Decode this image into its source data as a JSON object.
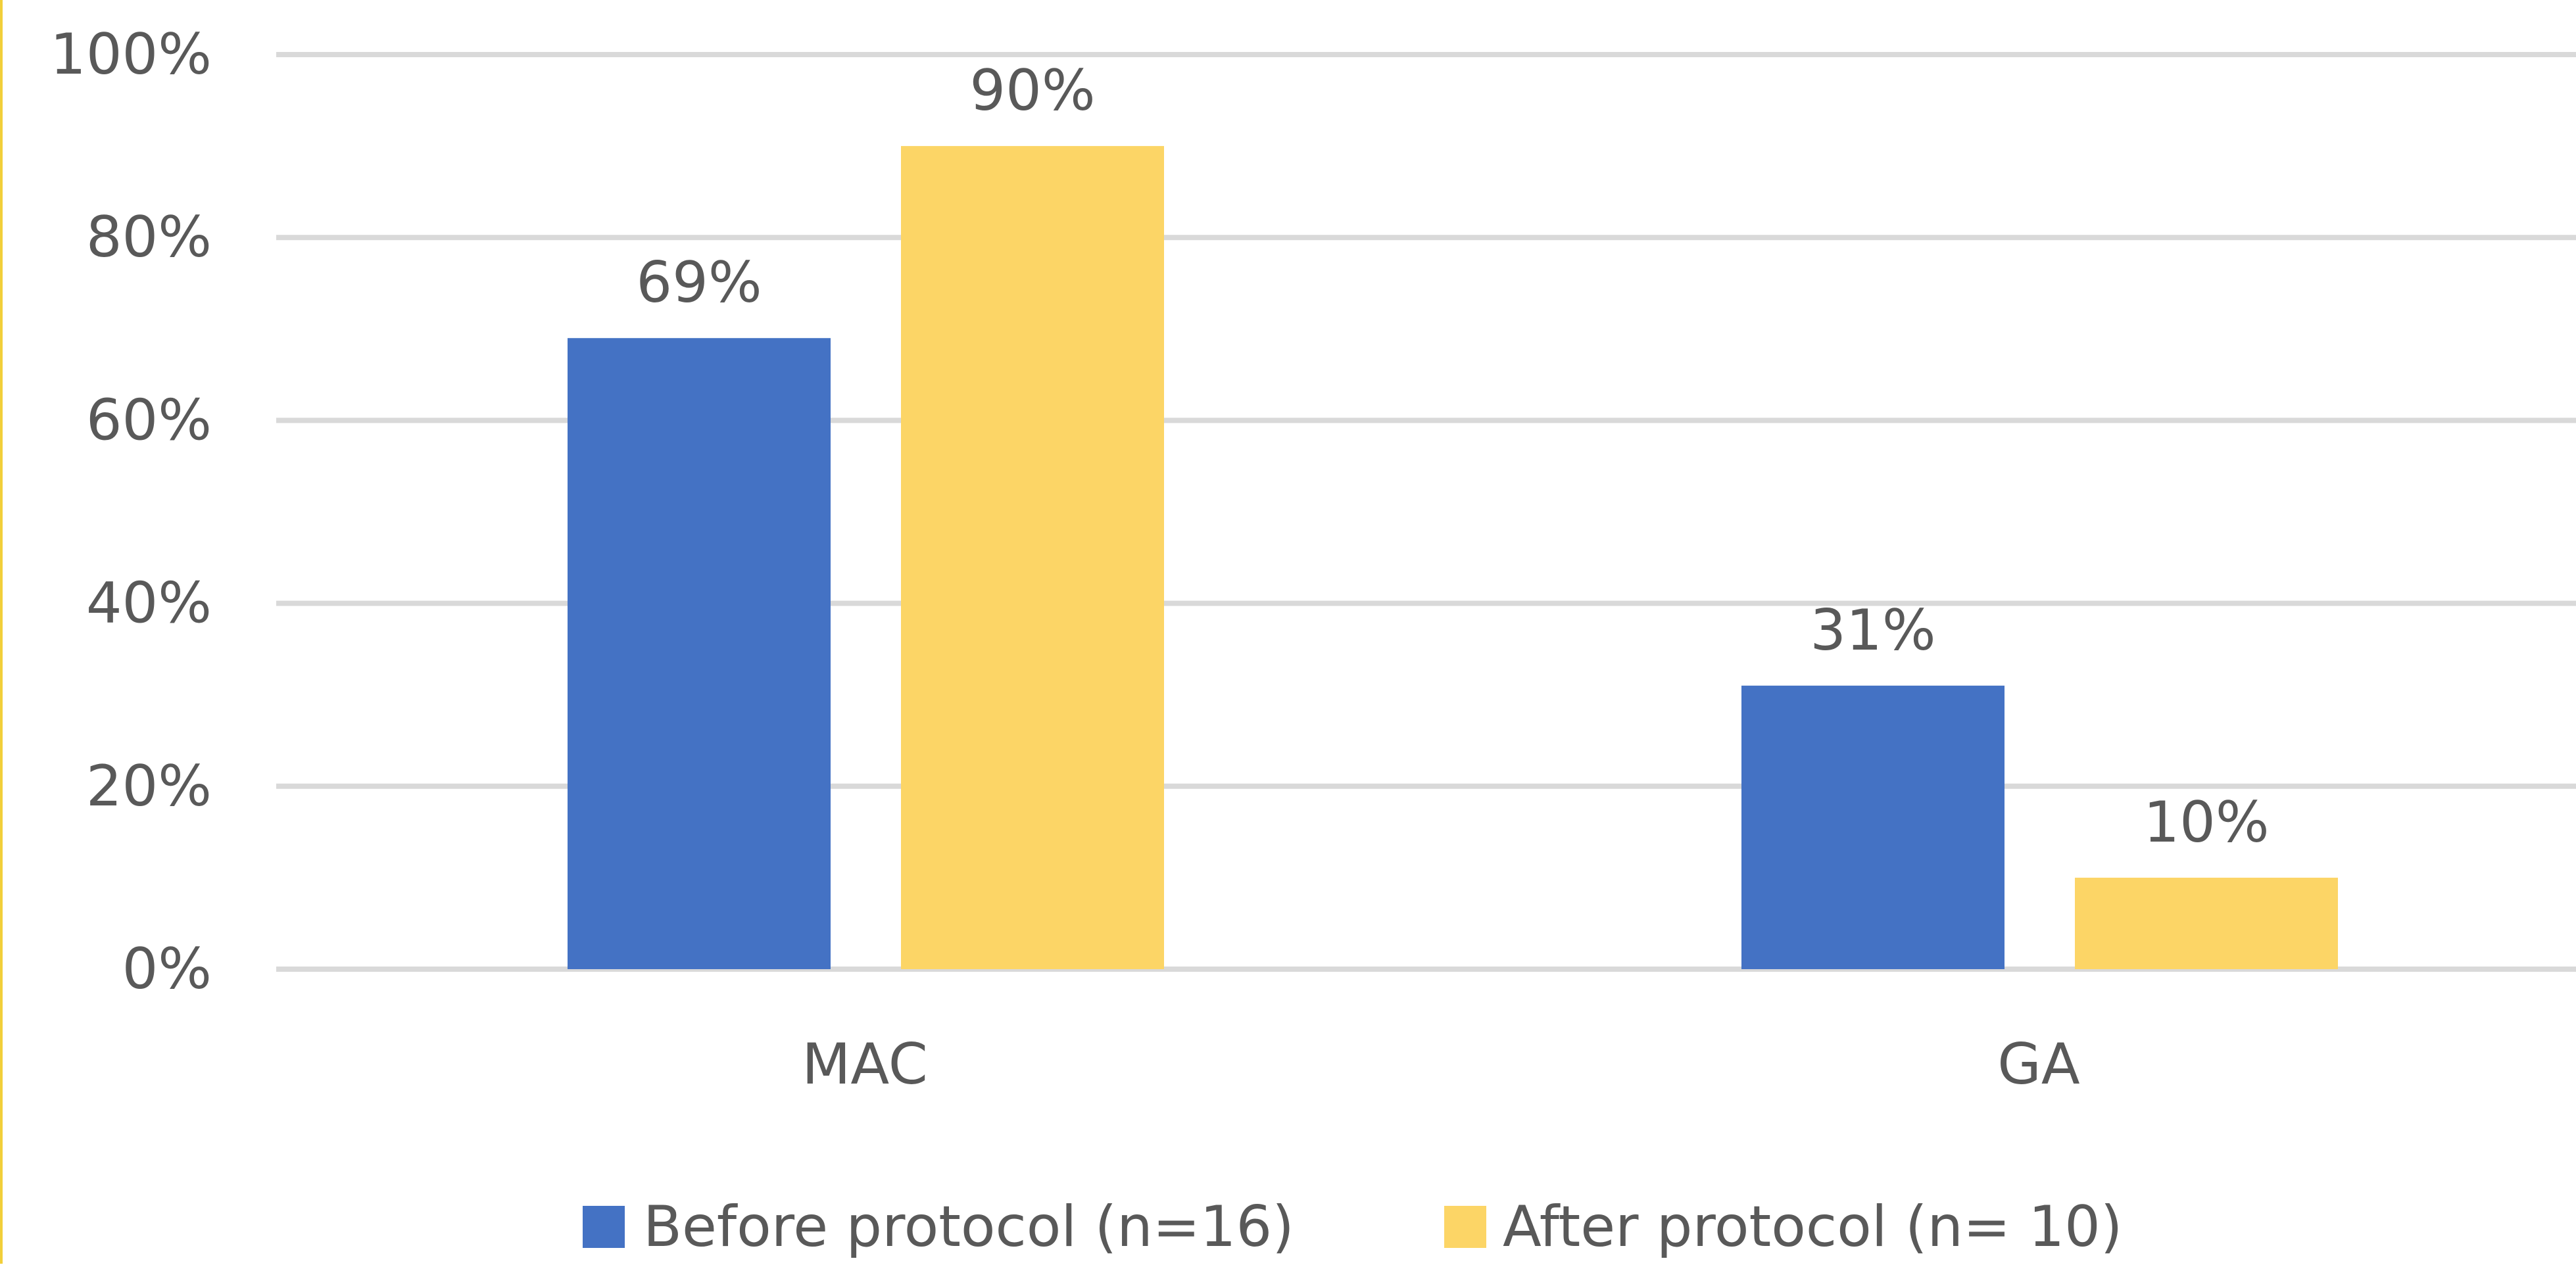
{
  "chart_data": {
    "type": "bar",
    "title": "",
    "xlabel": "",
    "ylabel": "",
    "categories": [
      "MAC",
      "GA"
    ],
    "series": [
      {
        "name": "Before protocol (n=16)",
        "values": [
          69,
          31
        ],
        "labels": [
          "69%",
          "31%"
        ],
        "color": "#4472c4"
      },
      {
        "name": "After protocol (n= 10)",
        "values": [
          90,
          10
        ],
        "labels": [
          "90%",
          "10%"
        ],
        "color": "#fcd566"
      }
    ],
    "ylim": [
      0,
      100
    ],
    "yticks": [
      0,
      20,
      40,
      60,
      80,
      100
    ],
    "ytick_labels": [
      "0%",
      "20%",
      "40%",
      "60%",
      "80%",
      "100%"
    ],
    "grid": true,
    "legend_position": "bottom",
    "colors": {
      "gridline": "#d9d9d9",
      "text": "#595959",
      "border_accent": "#f2cf3a"
    }
  }
}
